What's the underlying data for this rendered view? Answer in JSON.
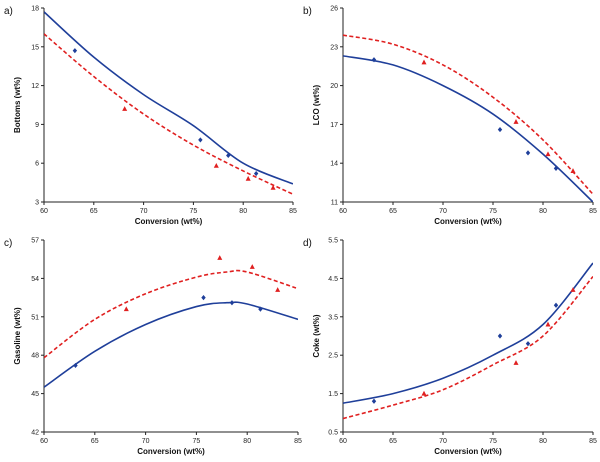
{
  "colors": {
    "model_blue": "#1f3f9a",
    "model_red": "#e02020",
    "axis": "#222222"
  },
  "chart_data": [
    {
      "type": "scatter",
      "panel_label": "a)",
      "xlabel": "Conversion (wt%)",
      "ylabel": "Bottoms (wt%)",
      "xlim": [
        60,
        85
      ],
      "ylim": [
        3,
        18
      ],
      "xticks": [
        60,
        65,
        70,
        75,
        80,
        85
      ],
      "yticks": [
        3,
        6,
        9,
        12,
        15,
        18
      ],
      "series": [
        {
          "marker": "diamond",
          "color": "#1f3f9a",
          "points": [
            [
              63.1,
              14.7
            ],
            [
              75.7,
              7.8
            ],
            [
              78.5,
              6.6
            ],
            [
              81.3,
              5.2
            ]
          ]
        },
        {
          "marker": "triangle",
          "color": "#e02020",
          "points": [
            [
              68.1,
              10.2
            ],
            [
              77.3,
              5.8
            ],
            [
              80.5,
              4.8
            ],
            [
              83.0,
              4.1
            ]
          ]
        }
      ],
      "curves": [
        {
          "style": "solid",
          "color": "#1f3f9a",
          "points": [
            [
              60,
              17.7
            ],
            [
              65,
              14.2
            ],
            [
              70,
              11.3
            ],
            [
              75,
              8.9
            ],
            [
              80,
              6.0
            ],
            [
              85,
              4.4
            ]
          ]
        },
        {
          "style": "dashed",
          "color": "#e02020",
          "points": [
            [
              60,
              16.0
            ],
            [
              65,
              12.7
            ],
            [
              70,
              9.8
            ],
            [
              75,
              7.4
            ],
            [
              80,
              5.4
            ],
            [
              85,
              3.6
            ]
          ]
        }
      ]
    },
    {
      "type": "scatter",
      "panel_label": "b)",
      "xlabel": "Conversion (wt%)",
      "ylabel": "LCO (wt%)",
      "xlim": [
        60,
        85
      ],
      "ylim": [
        11,
        26
      ],
      "xticks": [
        60,
        65,
        70,
        75,
        80,
        85
      ],
      "yticks": [
        11,
        14,
        17,
        20,
        23,
        26
      ],
      "series": [
        {
          "marker": "diamond",
          "color": "#1f3f9a",
          "points": [
            [
              63.1,
              22.0
            ],
            [
              75.7,
              16.6
            ],
            [
              78.5,
              14.8
            ],
            [
              81.3,
              13.6
            ]
          ]
        },
        {
          "marker": "triangle",
          "color": "#e02020",
          "points": [
            [
              68.1,
              21.8
            ],
            [
              77.3,
              17.2
            ],
            [
              80.5,
              14.7
            ],
            [
              83.0,
              13.4
            ]
          ]
        }
      ],
      "curves": [
        {
          "style": "solid",
          "color": "#1f3f9a",
          "points": [
            [
              60,
              22.3
            ],
            [
              65,
              21.6
            ],
            [
              70,
              20.0
            ],
            [
              75,
              17.8
            ],
            [
              80,
              14.7
            ],
            [
              85,
              11.0
            ]
          ]
        },
        {
          "style": "dashed",
          "color": "#e02020",
          "points": [
            [
              60,
              23.9
            ],
            [
              65,
              23.2
            ],
            [
              70,
              21.6
            ],
            [
              75,
              19.1
            ],
            [
              80,
              15.8
            ],
            [
              85,
              11.6
            ]
          ]
        }
      ]
    },
    {
      "type": "scatter",
      "panel_label": "c)",
      "xlabel": "Conversion (wt%)",
      "ylabel": "Gasoline (wt%)",
      "xlim": [
        60,
        85
      ],
      "ylim": [
        42,
        57
      ],
      "xticks": [
        60,
        65,
        70,
        75,
        80,
        85
      ],
      "yticks": [
        42,
        45,
        48,
        51,
        54,
        57
      ],
      "series": [
        {
          "marker": "diamond",
          "color": "#1f3f9a",
          "points": [
            [
              63.1,
              47.2
            ],
            [
              75.7,
              52.5
            ],
            [
              78.5,
              52.1
            ],
            [
              81.3,
              51.6
            ]
          ]
        },
        {
          "marker": "triangle",
          "color": "#e02020",
          "points": [
            [
              68.1,
              51.6
            ],
            [
              77.3,
              55.6
            ],
            [
              80.5,
              54.9
            ],
            [
              83.0,
              53.1
            ]
          ]
        }
      ],
      "curves": [
        {
          "style": "solid",
          "color": "#1f3f9a",
          "points": [
            [
              60,
              45.5
            ],
            [
              65,
              48.3
            ],
            [
              70,
              50.4
            ],
            [
              75,
              51.8
            ],
            [
              78,
              52.1
            ],
            [
              80,
              52.0
            ],
            [
              85,
              50.8
            ]
          ]
        },
        {
          "style": "dashed",
          "color": "#e02020",
          "points": [
            [
              60,
              47.8
            ],
            [
              65,
              50.8
            ],
            [
              70,
              52.8
            ],
            [
              75,
              54.1
            ],
            [
              78,
              54.5
            ],
            [
              80,
              54.5
            ],
            [
              85,
              53.2
            ]
          ]
        }
      ]
    },
    {
      "type": "scatter",
      "panel_label": "d)",
      "xlabel": "Conversion (wt%)",
      "ylabel": "Coke (wt%)",
      "xlim": [
        60,
        85
      ],
      "ylim": [
        0.5,
        5.5
      ],
      "xticks": [
        60,
        65,
        70,
        75,
        80,
        85
      ],
      "yticks": [
        0.5,
        1.5,
        2.5,
        3.5,
        4.5,
        5.5
      ],
      "series": [
        {
          "marker": "diamond",
          "color": "#1f3f9a",
          "points": [
            [
              63.1,
              1.3
            ],
            [
              75.7,
              3.0
            ],
            [
              78.5,
              2.8
            ],
            [
              81.3,
              3.8
            ]
          ]
        },
        {
          "marker": "triangle",
          "color": "#e02020",
          "points": [
            [
              68.1,
              1.5
            ],
            [
              77.3,
              2.3
            ],
            [
              80.5,
              3.3
            ],
            [
              83.0,
              4.2
            ]
          ]
        }
      ],
      "curves": [
        {
          "style": "solid",
          "color": "#1f3f9a",
          "points": [
            [
              60,
              1.25
            ],
            [
              65,
              1.5
            ],
            [
              70,
              1.9
            ],
            [
              75,
              2.5
            ],
            [
              80,
              3.3
            ],
            [
              85,
              4.9
            ]
          ]
        },
        {
          "style": "dashed",
          "color": "#e02020",
          "points": [
            [
              60,
              0.85
            ],
            [
              65,
              1.2
            ],
            [
              70,
              1.6
            ],
            [
              75,
              2.25
            ],
            [
              80,
              3.0
            ],
            [
              85,
              4.55
            ]
          ]
        }
      ]
    }
  ]
}
